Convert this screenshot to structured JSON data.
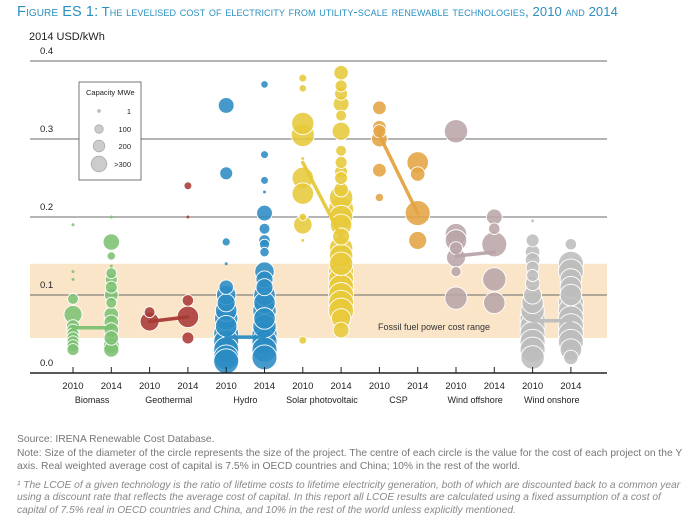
{
  "figure": {
    "title_prefix": "Figure ES 1:",
    "title_text": "The levelised cost of electricity from utility-scale renewable technologies, 2010 and 2014"
  },
  "notes": {
    "source": "Source: IRENA Renewable Cost Database.",
    "note": "Note: Size of the diameter of the circle represents the size of the project. The centre of each circle is the value for the cost of each project on the Y axis. Real weighted average cost of capital is 7.5% in OECD countries and China; 10% in the rest of the world.",
    "footnote": "¹ The LCOE of a given technology is the ratio of lifetime costs to lifetime electricity generation, both of which are discounted back to a common year using a discount rate that reflects the average cost of capital. In this report all LCOE results are calculated using a fixed assumption of a cost of capital of 7.5% real in OECD countries and China, and 10% in the rest of the world unless explicitly mentioned."
  },
  "chart_data": {
    "type": "scatter",
    "title": "The levelised cost of electricity from utility-scale renewable technologies, 2010 and 2014",
    "ylabel": "2014 USD/kWh",
    "xlabel": "",
    "ylim": [
      0.0,
      0.4
    ],
    "yticks": [
      "0.0",
      "0.1",
      "0.2",
      "0.3",
      "0.4"
    ],
    "grid": true,
    "band": {
      "label": "Fossil fuel power cost range",
      "range": [
        0.045,
        0.14
      ],
      "color": "#fae5c8"
    },
    "legend": {
      "title": "Capacity MWe",
      "placement": "top-left",
      "entries": [
        {
          "label": "1",
          "mwe": 1
        },
        {
          "label": "100",
          "mwe": 100
        },
        {
          "label": "200",
          "mwe": 200
        },
        {
          "label": ">300",
          "mwe": 300
        }
      ],
      "color": "#cccccc"
    },
    "years": [
      "2010",
      "2014"
    ],
    "technologies": [
      {
        "name": "Biomass",
        "color": "#7dc272",
        "weighted_average": [
          0.058,
          0.058
        ],
        "projects": {
          "2010": [
            [
              0.19,
              1
            ],
            [
              0.095,
              20
            ],
            [
              0.075,
              120
            ],
            [
              0.06,
              40
            ],
            [
              0.055,
              30
            ],
            [
              0.05,
              30
            ],
            [
              0.045,
              30
            ],
            [
              0.04,
              30
            ],
            [
              0.035,
              30
            ],
            [
              0.03,
              30
            ],
            [
              0.12,
              1
            ],
            [
              0.13,
              1
            ]
          ],
          "2014": [
            [
              0.168,
              90
            ],
            [
              0.15,
              5
            ],
            [
              0.137,
              1
            ],
            [
              0.128,
              20
            ],
            [
              0.12,
              30
            ],
            [
              0.11,
              30
            ],
            [
              0.1,
              50
            ],
            [
              0.09,
              20
            ],
            [
              0.075,
              60
            ],
            [
              0.065,
              60
            ],
            [
              0.055,
              60
            ],
            [
              0.045,
              60
            ],
            [
              0.035,
              80
            ],
            [
              0.03,
              70
            ],
            [
              0.2,
              1
            ]
          ]
        }
      },
      {
        "name": "Geothermal",
        "color": "#a93a36",
        "weighted_average": [
          0.066,
          0.072
        ],
        "projects": {
          "2010": [
            [
              0.078,
              20
            ],
            [
              0.066,
              140
            ]
          ],
          "2014": [
            [
              0.24,
              3
            ],
            [
              0.093,
              25
            ],
            [
              0.072,
              200
            ],
            [
              0.045,
              30
            ],
            [
              0.2,
              1
            ]
          ]
        }
      },
      {
        "name": "Hydro",
        "color": "#2b8cc4",
        "weighted_average": [
          0.046,
          0.046
        ],
        "projects": {
          "2010": [
            [
              0.343,
              80
            ],
            [
              0.256,
              40
            ],
            [
              0.168,
              4
            ],
            [
              0.14,
              1
            ],
            [
              0.11,
              60
            ],
            [
              0.1,
              150
            ],
            [
              0.09,
              120
            ],
            [
              0.08,
              200
            ],
            [
              0.07,
              250
            ],
            [
              0.06,
              200
            ],
            [
              0.05,
              300
            ],
            [
              0.04,
              300
            ],
            [
              0.03,
              300
            ],
            [
              0.02,
              300
            ],
            [
              0.015,
              300
            ]
          ],
          "2014": [
            [
              0.37,
              2
            ],
            [
              0.28,
              3
            ],
            [
              0.247,
              3
            ],
            [
              0.232,
              1
            ],
            [
              0.205,
              80
            ],
            [
              0.185,
              20
            ],
            [
              0.17,
              25
            ],
            [
              0.165,
              15
            ],
            [
              0.155,
              10
            ],
            [
              0.13,
              150
            ],
            [
              0.12,
              100
            ],
            [
              0.11,
              100
            ],
            [
              0.1,
              200
            ],
            [
              0.09,
              200
            ],
            [
              0.08,
              250
            ],
            [
              0.07,
              200
            ],
            [
              0.06,
              250
            ],
            [
              0.05,
              300
            ],
            [
              0.04,
              300
            ],
            [
              0.03,
              300
            ],
            [
              0.02,
              300
            ]
          ]
        }
      },
      {
        "name": "Solar photovoltaic",
        "color": "#e7c93a",
        "weighted_average": [
          0.27,
          0.175
        ],
        "projects": {
          "2010": [
            [
              0.378,
              3
            ],
            [
              0.365,
              2
            ],
            [
              0.32,
              220
            ],
            [
              0.305,
              240
            ],
            [
              0.275,
              1
            ],
            [
              0.25,
              200
            ],
            [
              0.23,
              200
            ],
            [
              0.2,
              2
            ],
            [
              0.19,
              130
            ],
            [
              0.17,
              1
            ],
            [
              0.042,
              3
            ]
          ],
          "2014": [
            [
              0.385,
              60
            ],
            [
              0.368,
              30
            ],
            [
              0.358,
              40
            ],
            [
              0.345,
              80
            ],
            [
              0.33,
              20
            ],
            [
              0.31,
              120
            ],
            [
              0.285,
              20
            ],
            [
              0.27,
              30
            ],
            [
              0.258,
              40
            ],
            [
              0.25,
              40
            ],
            [
              0.235,
              60
            ],
            [
              0.225,
              250
            ],
            [
              0.21,
              300
            ],
            [
              0.2,
              250
            ],
            [
              0.19,
              200
            ],
            [
              0.175,
              100
            ],
            [
              0.16,
              250
            ],
            [
              0.15,
              250
            ],
            [
              0.14,
              250
            ],
            [
              0.13,
              300
            ],
            [
              0.12,
              300
            ],
            [
              0.11,
              300
            ],
            [
              0.1,
              300
            ],
            [
              0.09,
              300
            ],
            [
              0.08,
              300
            ],
            [
              0.07,
              150
            ],
            [
              0.055,
              80
            ]
          ]
        }
      },
      {
        "name": "CSP",
        "color": "#e5a443",
        "weighted_average": [
          0.305,
          0.205
        ],
        "projects": {
          "2010": [
            [
              0.34,
              50
            ],
            [
              0.315,
              50
            ],
            [
              0.31,
              40
            ],
            [
              0.3,
              80
            ],
            [
              0.26,
              50
            ],
            [
              0.225,
              5
            ]
          ],
          "2014": [
            [
              0.27,
              200
            ],
            [
              0.255,
              60
            ],
            [
              0.205,
              300
            ],
            [
              0.17,
              120
            ]
          ]
        }
      },
      {
        "name": "Wind offshore",
        "color": "#b9a5a9",
        "weighted_average": [
          0.15,
          0.155
        ],
        "projects": {
          "2010": [
            [
              0.31,
              250
            ],
            [
              0.178,
              200
            ],
            [
              0.17,
              200
            ],
            [
              0.16,
              40
            ],
            [
              0.148,
              140
            ],
            [
              0.13,
              15
            ],
            [
              0.096,
              220
            ]
          ],
          "2014": [
            [
              0.2,
              80
            ],
            [
              0.185,
              25
            ],
            [
              0.165,
              300
            ],
            [
              0.12,
              250
            ],
            [
              0.09,
              200
            ]
          ]
        }
      },
      {
        "name": "Wind onshore",
        "color": "#bdbdbd",
        "weighted_average": [
          0.067,
          0.067
        ],
        "projects": {
          "2010": [
            [
              0.17,
              40
            ],
            [
              0.155,
              60
            ],
            [
              0.145,
              60
            ],
            [
              0.135,
              40
            ],
            [
              0.125,
              30
            ],
            [
              0.115,
              60
            ],
            [
              0.1,
              120
            ],
            [
              0.09,
              200
            ],
            [
              0.08,
              250
            ],
            [
              0.07,
              300
            ],
            [
              0.06,
              300
            ],
            [
              0.05,
              300
            ],
            [
              0.04,
              300
            ],
            [
              0.03,
              300
            ],
            [
              0.02,
              250
            ],
            [
              0.195,
              1
            ]
          ],
          "2014": [
            [
              0.165,
              25
            ],
            [
              0.14,
              300
            ],
            [
              0.13,
              300
            ],
            [
              0.12,
              200
            ],
            [
              0.11,
              200
            ],
            [
              0.1,
              200
            ],
            [
              0.09,
              300
            ],
            [
              0.08,
              300
            ],
            [
              0.07,
              300
            ],
            [
              0.06,
              300
            ],
            [
              0.05,
              300
            ],
            [
              0.04,
              300
            ],
            [
              0.03,
              200
            ],
            [
              0.02,
              60
            ]
          ]
        }
      }
    ]
  }
}
